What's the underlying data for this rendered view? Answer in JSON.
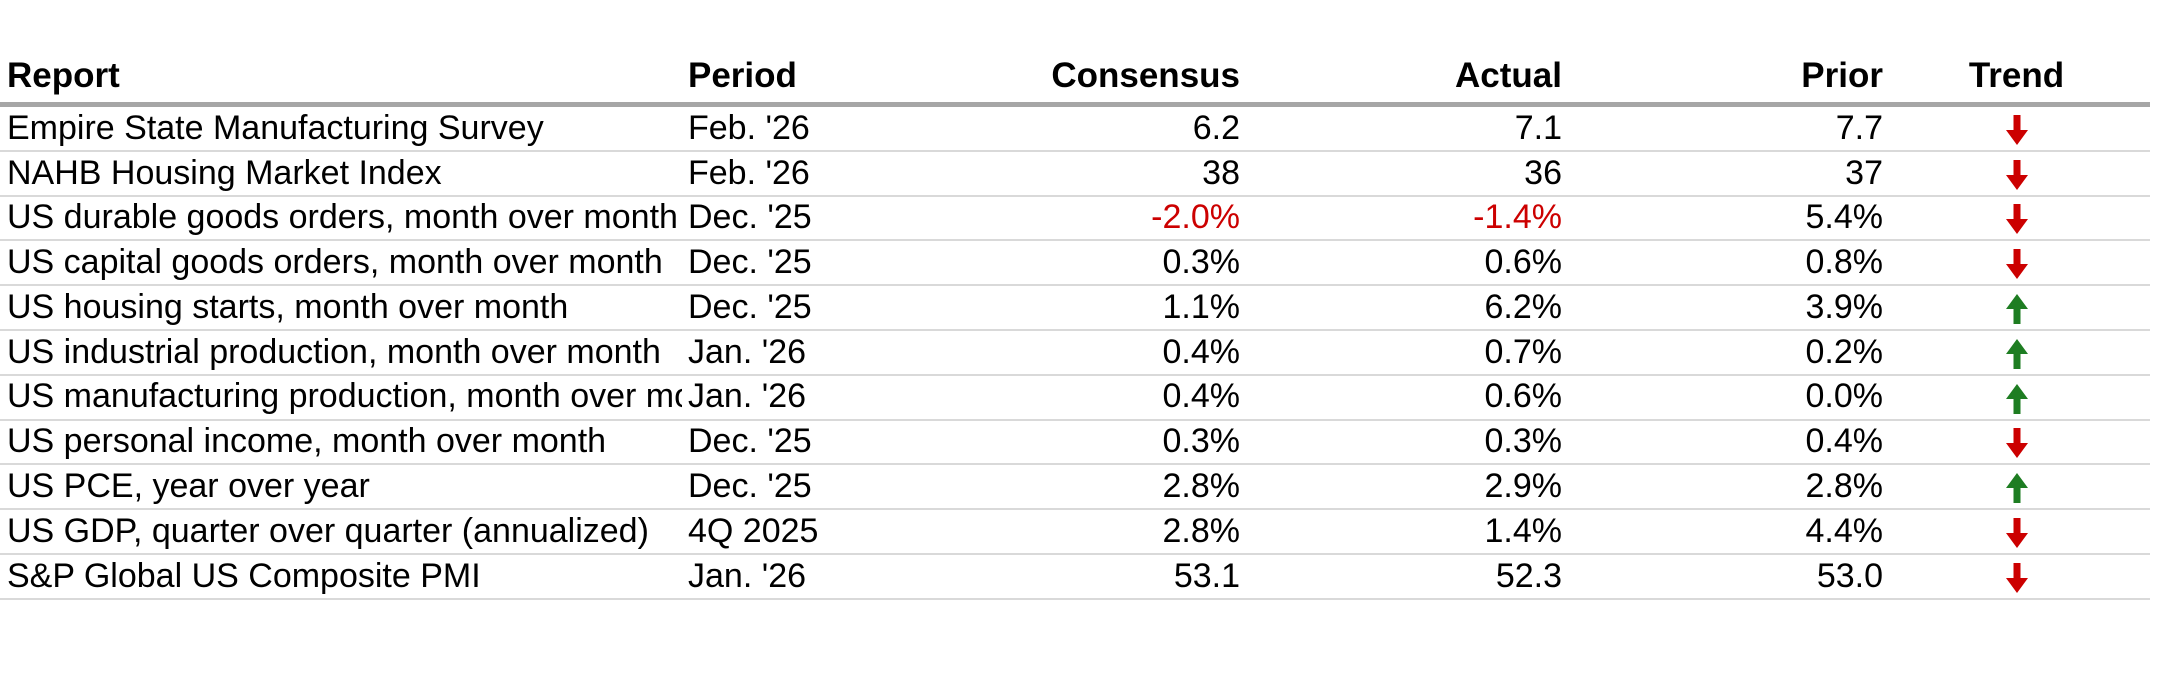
{
  "colors": {
    "background": "#ffffff",
    "text": "#000000",
    "negative_value": "#cc0000",
    "trend_down_arrow": "#cc0000",
    "trend_up_arrow": "#1e7d22",
    "header_rule": "#a6a6a6",
    "row_rule": "#d9d9d9"
  },
  "chart_data": {
    "type": "table",
    "columns": [
      {
        "key": "report",
        "label": "Report",
        "align": "left"
      },
      {
        "key": "period",
        "label": "Period",
        "align": "left"
      },
      {
        "key": "consensus",
        "label": "Consensus",
        "align": "right"
      },
      {
        "key": "actual",
        "label": "Actual",
        "align": "right"
      },
      {
        "key": "prior",
        "label": "Prior",
        "align": "right"
      },
      {
        "key": "trend",
        "label": "Trend",
        "align": "center"
      }
    ],
    "rows": [
      {
        "report": "Empire State Manufacturing Survey",
        "period": "Feb. '26",
        "consensus": "6.2",
        "actual": "7.1",
        "prior": "7.7",
        "trend": "down"
      },
      {
        "report": "NAHB Housing Market Index",
        "period": "Feb. '26",
        "consensus": "38",
        "actual": "36",
        "prior": "37",
        "trend": "down"
      },
      {
        "report": "US durable goods orders, month over month",
        "period": "Dec. '25",
        "consensus": "-2.0%",
        "actual": "-1.4%",
        "prior": "5.4%",
        "trend": "down"
      },
      {
        "report": "US capital goods orders, month over month",
        "period": "Dec. '25",
        "consensus": "0.3%",
        "actual": "0.6%",
        "prior": "0.8%",
        "trend": "down"
      },
      {
        "report": "US housing starts, month over month",
        "period": "Dec. '25",
        "consensus": "1.1%",
        "actual": "6.2%",
        "prior": "3.9%",
        "trend": "up"
      },
      {
        "report": "US industrial production, month over month",
        "period": "Jan. '26",
        "consensus": "0.4%",
        "actual": "0.7%",
        "prior": "0.2%",
        "trend": "up"
      },
      {
        "report": "US manufacturing production, month over month",
        "period": "Jan. '26",
        "consensus": "0.4%",
        "actual": "0.6%",
        "prior": "0.0%",
        "trend": "up"
      },
      {
        "report": "US personal income, month over month",
        "period": "Dec. '25",
        "consensus": "0.3%",
        "actual": "0.3%",
        "prior": "0.4%",
        "trend": "down"
      },
      {
        "report": "US PCE, year over year",
        "period": "Dec. '25",
        "consensus": "2.8%",
        "actual": "2.9%",
        "prior": "2.8%",
        "trend": "up"
      },
      {
        "report": "US GDP, quarter over quarter (annualized)",
        "period": "4Q 2025",
        "consensus": "2.8%",
        "actual": "1.4%",
        "prior": "4.4%",
        "trend": "down"
      },
      {
        "report": "S&P Global US Composite PMI",
        "period": "Jan. '26",
        "consensus": "53.1",
        "actual": "52.3",
        "prior": "53.0",
        "trend": "down"
      }
    ]
  }
}
